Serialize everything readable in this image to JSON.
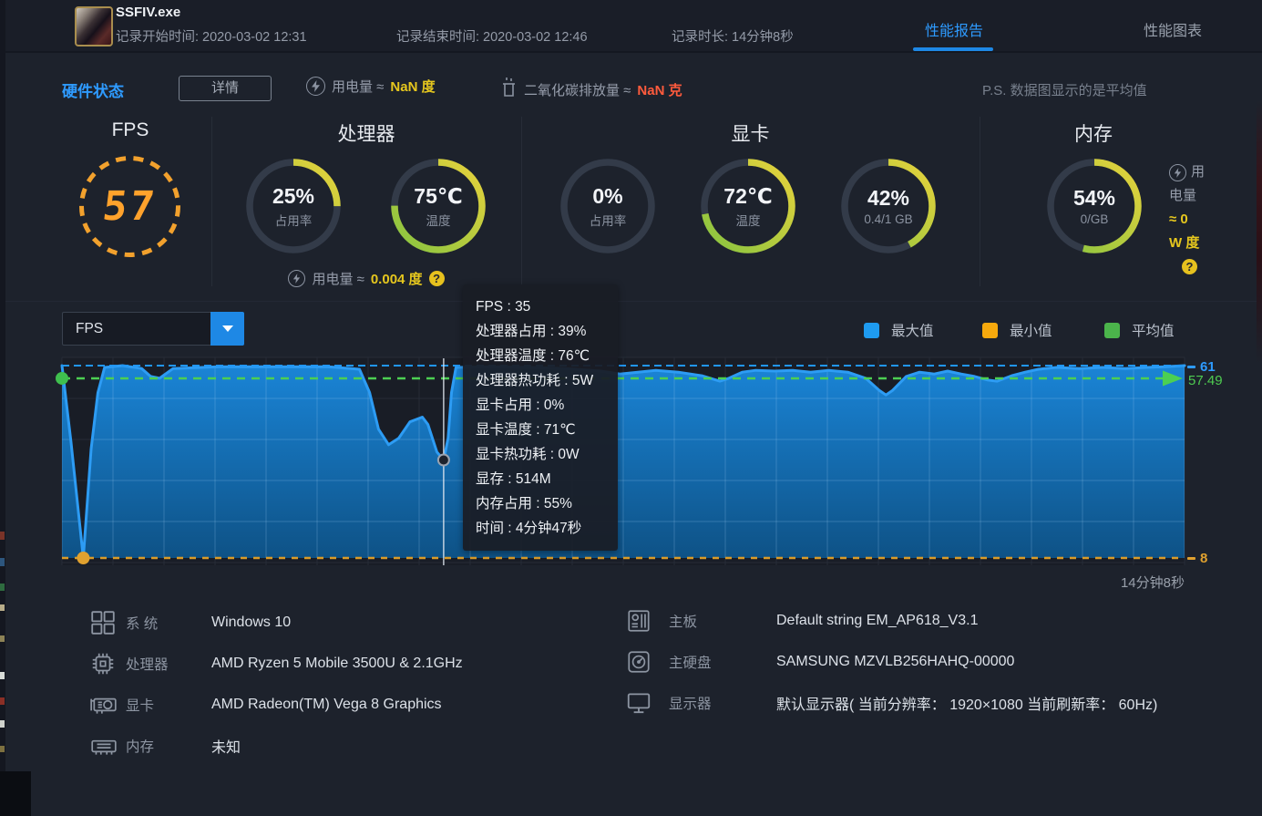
{
  "header": {
    "app_title": "SSFIV.exe",
    "record_start": "记录开始时间: 2020-03-02 12:31",
    "record_end": "记录结束时间: 2020-03-02 12:46",
    "record_duration": "记录时长: 14分钟8秒",
    "tabs": [
      {
        "label": "性能报告",
        "active": true
      },
      {
        "label": "性能图表",
        "active": false
      }
    ]
  },
  "status_bar": {
    "section_title": "硬件状态",
    "detail_button": "详情",
    "power_label": "用电量 ≈",
    "power_value": "NaN 度",
    "co2_label": "二氧化碳排放量 ≈",
    "co2_value": "NaN 克",
    "note": "P.S. 数据图显示的是平均值"
  },
  "gauges": {
    "fps": {
      "title": "FPS",
      "value": "57"
    },
    "cpu": {
      "title": "处理器",
      "items": [
        {
          "value": "25%",
          "label": "占用率",
          "percent": 25
        },
        {
          "value": "75℃",
          "label": "温度",
          "percent": 75
        }
      ],
      "power_label": "用电量 ≈",
      "power_value": "0.004 度",
      "help_icon": "?"
    },
    "gpu": {
      "title": "显卡",
      "items": [
        {
          "value": "0%",
          "label": "占用率",
          "percent": 0
        },
        {
          "value": "72℃",
          "label": "温度",
          "percent": 72
        },
        {
          "value": "42%",
          "label": "0.4/1 GB",
          "percent": 42
        }
      ]
    },
    "ram": {
      "title": "内存",
      "items": [
        {
          "value": "54%",
          "label": "0/GB",
          "percent": 54
        }
      ],
      "power_note": {
        "label_1": "用",
        "label_2": "电量",
        "value_1": "≈ 0",
        "value_2": "W 度",
        "help_icon": "?"
      }
    }
  },
  "chart_controls": {
    "metric_select": "FPS",
    "legend": [
      {
        "label": "最大值",
        "color": "#1e9bf0"
      },
      {
        "label": "最小值",
        "color": "#f6a90d"
      },
      {
        "label": "平均值",
        "color": "#4bb44b"
      }
    ]
  },
  "chart_data": {
    "type": "area",
    "metric": "FPS",
    "line_color": "#2d9cf4",
    "grid": true,
    "y_axis": {
      "max": 61,
      "avg": 57.49,
      "min": 8,
      "max_label": "61",
      "avg_label": "57.49",
      "min_label": "8"
    },
    "x_axis": {
      "end_label": "14分钟8秒",
      "total_duration": "14分钟8秒"
    },
    "series": [
      {
        "name": "FPS",
        "points": [
          [
            0,
            61
          ],
          [
            0.008,
            40
          ],
          [
            0.019,
            8
          ],
          [
            0.026,
            38
          ],
          [
            0.032,
            53.5
          ],
          [
            0.038,
            60.5
          ],
          [
            0.054,
            61
          ],
          [
            0.071,
            60.2
          ],
          [
            0.079,
            58
          ],
          [
            0.087,
            57.5
          ],
          [
            0.099,
            60.2
          ],
          [
            0.14,
            60.7
          ],
          [
            0.188,
            60.7
          ],
          [
            0.237,
            60.7
          ],
          [
            0.265,
            60
          ],
          [
            0.274,
            53.6
          ],
          [
            0.282,
            43.5
          ],
          [
            0.291,
            39.2
          ],
          [
            0.3,
            41
          ],
          [
            0.31,
            45.5
          ],
          [
            0.321,
            46.8
          ],
          [
            0.326,
            44.8
          ],
          [
            0.334,
            37.2
          ],
          [
            0.34,
            35
          ],
          [
            0.344,
            41
          ],
          [
            0.347,
            53.6
          ],
          [
            0.351,
            60.5
          ],
          [
            0.383,
            60.7
          ],
          [
            0.416,
            60.5
          ],
          [
            0.448,
            60.2
          ],
          [
            0.48,
            59.5
          ],
          [
            0.497,
            58.7
          ],
          [
            0.513,
            59.2
          ],
          [
            0.529,
            59.7
          ],
          [
            0.549,
            59.2
          ],
          [
            0.57,
            58.2
          ],
          [
            0.586,
            56.7
          ],
          [
            0.594,
            57.5
          ],
          [
            0.606,
            59.2
          ],
          [
            0.618,
            59.7
          ],
          [
            0.635,
            59.5
          ],
          [
            0.651,
            59.7
          ],
          [
            0.667,
            59.2
          ],
          [
            0.683,
            59.7
          ],
          [
            0.7,
            59.2
          ],
          [
            0.716,
            57.5
          ],
          [
            0.728,
            54.2
          ],
          [
            0.734,
            52.9
          ],
          [
            0.74,
            54.2
          ],
          [
            0.752,
            58
          ],
          [
            0.764,
            59.2
          ],
          [
            0.777,
            58.7
          ],
          [
            0.789,
            59.5
          ],
          [
            0.801,
            58.7
          ],
          [
            0.813,
            58
          ],
          [
            0.825,
            57
          ],
          [
            0.833,
            56.7
          ],
          [
            0.846,
            58.2
          ],
          [
            0.858,
            59.2
          ],
          [
            0.87,
            60
          ],
          [
            0.886,
            60.5
          ],
          [
            0.906,
            60.2
          ],
          [
            0.927,
            60.5
          ],
          [
            0.947,
            60.2
          ],
          [
            0.967,
            60.5
          ],
          [
            0.983,
            60.7
          ],
          [
            1,
            61
          ]
        ]
      }
    ],
    "markers": {
      "avg_start_dot": {
        "x": 0.0,
        "value": 57.49,
        "color": "#3fbf4e"
      },
      "min_dot": {
        "x": 0.019,
        "value": 8,
        "color": "#e0a12f"
      },
      "cursor": {
        "x": 0.34,
        "value": 35
      }
    }
  },
  "tooltip": {
    "lines": [
      "FPS : 35",
      "处理器占用 : 39%",
      "处理器温度 : 76℃",
      "处理器热功耗 : 5W",
      "显卡占用 : 0%",
      "显卡温度 : 71℃",
      "显卡热功耗 : 0W",
      "显存 : 514M",
      "内存占用 : 55%",
      "时间 : 4分钟47秒"
    ]
  },
  "system_info": {
    "left": [
      {
        "icon": "windows-icon",
        "label": "系 统",
        "value": "Windows 10"
      },
      {
        "icon": "cpu-icon",
        "label": "处理器",
        "value": "AMD Ryzen 5 Mobile 3500U & 2.1GHz"
      },
      {
        "icon": "gpu-icon",
        "label": "显卡",
        "value": "AMD Radeon(TM) Vega 8 Graphics"
      },
      {
        "icon": "ram-icon",
        "label": "内存",
        "value": "未知"
      }
    ],
    "right": [
      {
        "icon": "motherboard-icon",
        "label": "主板",
        "value": "Default string EM_AP618_V3.1"
      },
      {
        "icon": "disk-icon",
        "label": "主硬盘",
        "value": "SAMSUNG MZVLB256HAHQ-00000"
      },
      {
        "icon": "monitor-icon",
        "label": "显示器",
        "value": "默认显示器( 当前分辨率： 1920×1080 当前刷新率： 60Hz)"
      }
    ]
  }
}
